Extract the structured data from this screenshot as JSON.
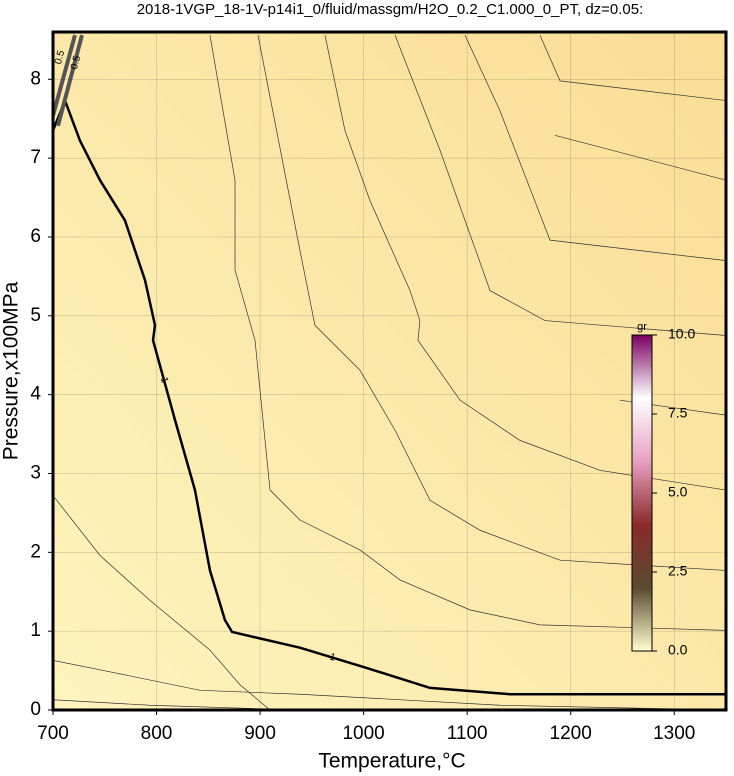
{
  "chart_data": {
    "type": "contour",
    "title": "2018-1VGP_18-1V-p14i1_0/fluid/massgm/H2O_0.2_C1.000_0_PT, dz=0.05:",
    "x_label": "Temperature,°C",
    "y_label": "Pressure,x100MPa",
    "xlim": [
      700,
      1350
    ],
    "ylim": [
      0,
      8.6
    ],
    "xticks": [
      700,
      800,
      900,
      1000,
      1100,
      1200,
      1300
    ],
    "yticks": [
      0,
      1,
      2,
      3,
      4,
      5,
      6,
      7,
      8
    ],
    "background": [
      "#fef4be",
      "#f9dd95"
    ],
    "contours": [
      {
        "level": 1,
        "color": "#000000",
        "x": [
          700,
          711.6,
          726.1,
          745.4,
          769.5,
          788.9,
          798.5,
          796.6,
          817.8,
          837.1,
          851.6,
          866.1,
          872.9,
          938.5,
          1001.3,
          1064.1,
          1141.4,
          1350
        ],
        "y": [
          7.35,
          7.73,
          7.22,
          6.72,
          6.21,
          5.45,
          4.88,
          4.69,
          3.68,
          2.79,
          1.77,
          1.14,
          0.99,
          0.79,
          0.54,
          0.28,
          0.2,
          0.2
        ]
      },
      {
        "level": 0.5,
        "color": "#555555",
        "x": [
          700,
          721.2
        ],
        "y": [
          7.54,
          8.56
        ]
      },
      {
        "level": 0.5,
        "color": "#555555",
        "x": [
          704.8,
          728
        ],
        "y": [
          7.41,
          8.56
        ]
      },
      {
        "color": "#333333",
        "x": [
          851.6,
          875.8,
          875.8,
          895.1,
          909.6,
          938.5,
          996.5,
          1035.1,
          1102.7,
          1170.3,
          1350
        ],
        "y": [
          8.56,
          6.72,
          5.58,
          4.69,
          2.79,
          2.41,
          2.03,
          1.65,
          1.27,
          1.08,
          1.01
        ]
      },
      {
        "color": "#333333",
        "x": [
          898,
          938.5,
          953,
          996.5,
          1030.3,
          1064.1,
          1112.4,
          1189.7,
          1350
        ],
        "y": [
          8.56,
          5.83,
          4.88,
          4.31,
          3.55,
          2.66,
          2.28,
          1.9,
          1.77
        ]
      },
      {
        "color": "#333333",
        "x": [
          962.7,
          982,
          1006.2,
          1044.8,
          1054.4,
          1052.5,
          1093.1,
          1151,
          1228.3,
          1350
        ],
        "y": [
          8.56,
          7.35,
          6.46,
          5.32,
          4.94,
          4.69,
          3.93,
          3.42,
          3.04,
          2.79
        ]
      },
      {
        "color": "#333333",
        "x": [
          1030.3,
          1073.8,
          1122.1,
          1175.2,
          1350
        ],
        "y": [
          8.56,
          7.1,
          5.32,
          4.94,
          4.75
        ]
      },
      {
        "color": "#333333",
        "x": [
          1097.9,
          1131.7,
          1180,
          1350
        ],
        "y": [
          8.56,
          7.6,
          5.96,
          5.7
        ]
      },
      {
        "color": "#333333",
        "x": [
          1170.3,
          1189.7,
          1350
        ],
        "y": [
          8.56,
          7.98,
          7.73
        ]
      },
      {
        "color": "#333333",
        "x": [
          1184.8,
          1350
        ],
        "y": [
          7.29,
          6.72
        ]
      },
      {
        "color": "#333333",
        "x": [
          1247.6,
          1350
        ],
        "y": [
          3.93,
          3.74
        ]
      },
      {
        "color": "#333333",
        "x": [
          700,
          745.4,
          793.7,
          851.6,
          880.6,
          909.6
        ],
        "y": [
          2.72,
          1.96,
          1.39,
          0.76,
          0.32,
          0
        ]
      },
      {
        "color": "#333333",
        "x": [
          700,
          745.4,
          842,
          938.5,
          1131.7,
          1350
        ],
        "y": [
          0.63,
          0.51,
          0.25,
          0.2,
          0.06,
          0
        ]
      },
      {
        "color": "#333333",
        "x": [
          700,
          793.7,
          938.5
        ],
        "y": [
          0.13,
          0.06,
          0
        ]
      }
    ],
    "colorbar": {
      "label": "gr",
      "lim": [
        0,
        10
      ],
      "ticks": [
        {
          "value": 0,
          "label": "0.0"
        },
        {
          "value": 2.5,
          "label": "2.5"
        },
        {
          "value": 5,
          "label": "5.0"
        },
        {
          "value": 7.5,
          "label": "7.5"
        },
        {
          "value": 10,
          "label": "10.0"
        }
      ],
      "colors": [
        "#ffffd0",
        "#5a4a30",
        "#8a2a2a",
        "#e8a0c0",
        "#ffffff",
        "#7a0060"
      ]
    }
  }
}
